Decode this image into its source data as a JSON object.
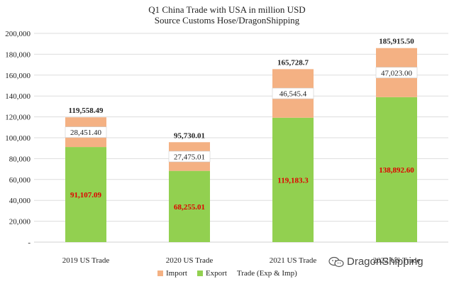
{
  "chart_data": {
    "type": "bar",
    "stacked": true,
    "title": "Q1 China Trade with USA in million  USD",
    "subtitle": "Source Customs Hose/DragonShipping",
    "categories": [
      "2019 US Trade",
      "2020 US Trade",
      "2021 US Trade",
      "2022 US Trade"
    ],
    "series": [
      {
        "name": "Export",
        "color": "#92d050",
        "values": [
          91107.09,
          68255.01,
          119183.3,
          138892.6
        ],
        "labels": [
          "91,107.09",
          "68,255.01",
          "119,183.3",
          "138,892.60"
        ]
      },
      {
        "name": "Import",
        "color": "#f4b183",
        "values": [
          28451.4,
          27475.01,
          46545.4,
          47023.0
        ],
        "labels": [
          "28,451.40",
          "27,475.01",
          "46,545.4",
          "47,023.00"
        ]
      }
    ],
    "totals": {
      "name": "Trade (Exp & Imp)",
      "values": [
        119558.49,
        95730.01,
        165728.7,
        185915.5
      ],
      "labels": [
        "119,558.49",
        "95,730.01",
        "165,728.7",
        "185,915.50"
      ]
    },
    "ylim": [
      0,
      200000
    ],
    "yticks": [
      0,
      20000,
      40000,
      60000,
      80000,
      100000,
      120000,
      140000,
      160000,
      180000,
      200000
    ],
    "ytick_labels": [
      "-",
      "20,000",
      "40,000",
      "60,000",
      "80,000",
      "100,000",
      "120,000",
      "140,000",
      "160,000",
      "180,000",
      "200,000"
    ],
    "grid": true,
    "legend_position": "bottom"
  },
  "legend": {
    "import_label": "Import",
    "export_label": "Export",
    "total_label": "Trade (Exp & Imp)"
  },
  "watermark": {
    "text": "DragonShipping",
    "icon": "wechat-icon"
  }
}
